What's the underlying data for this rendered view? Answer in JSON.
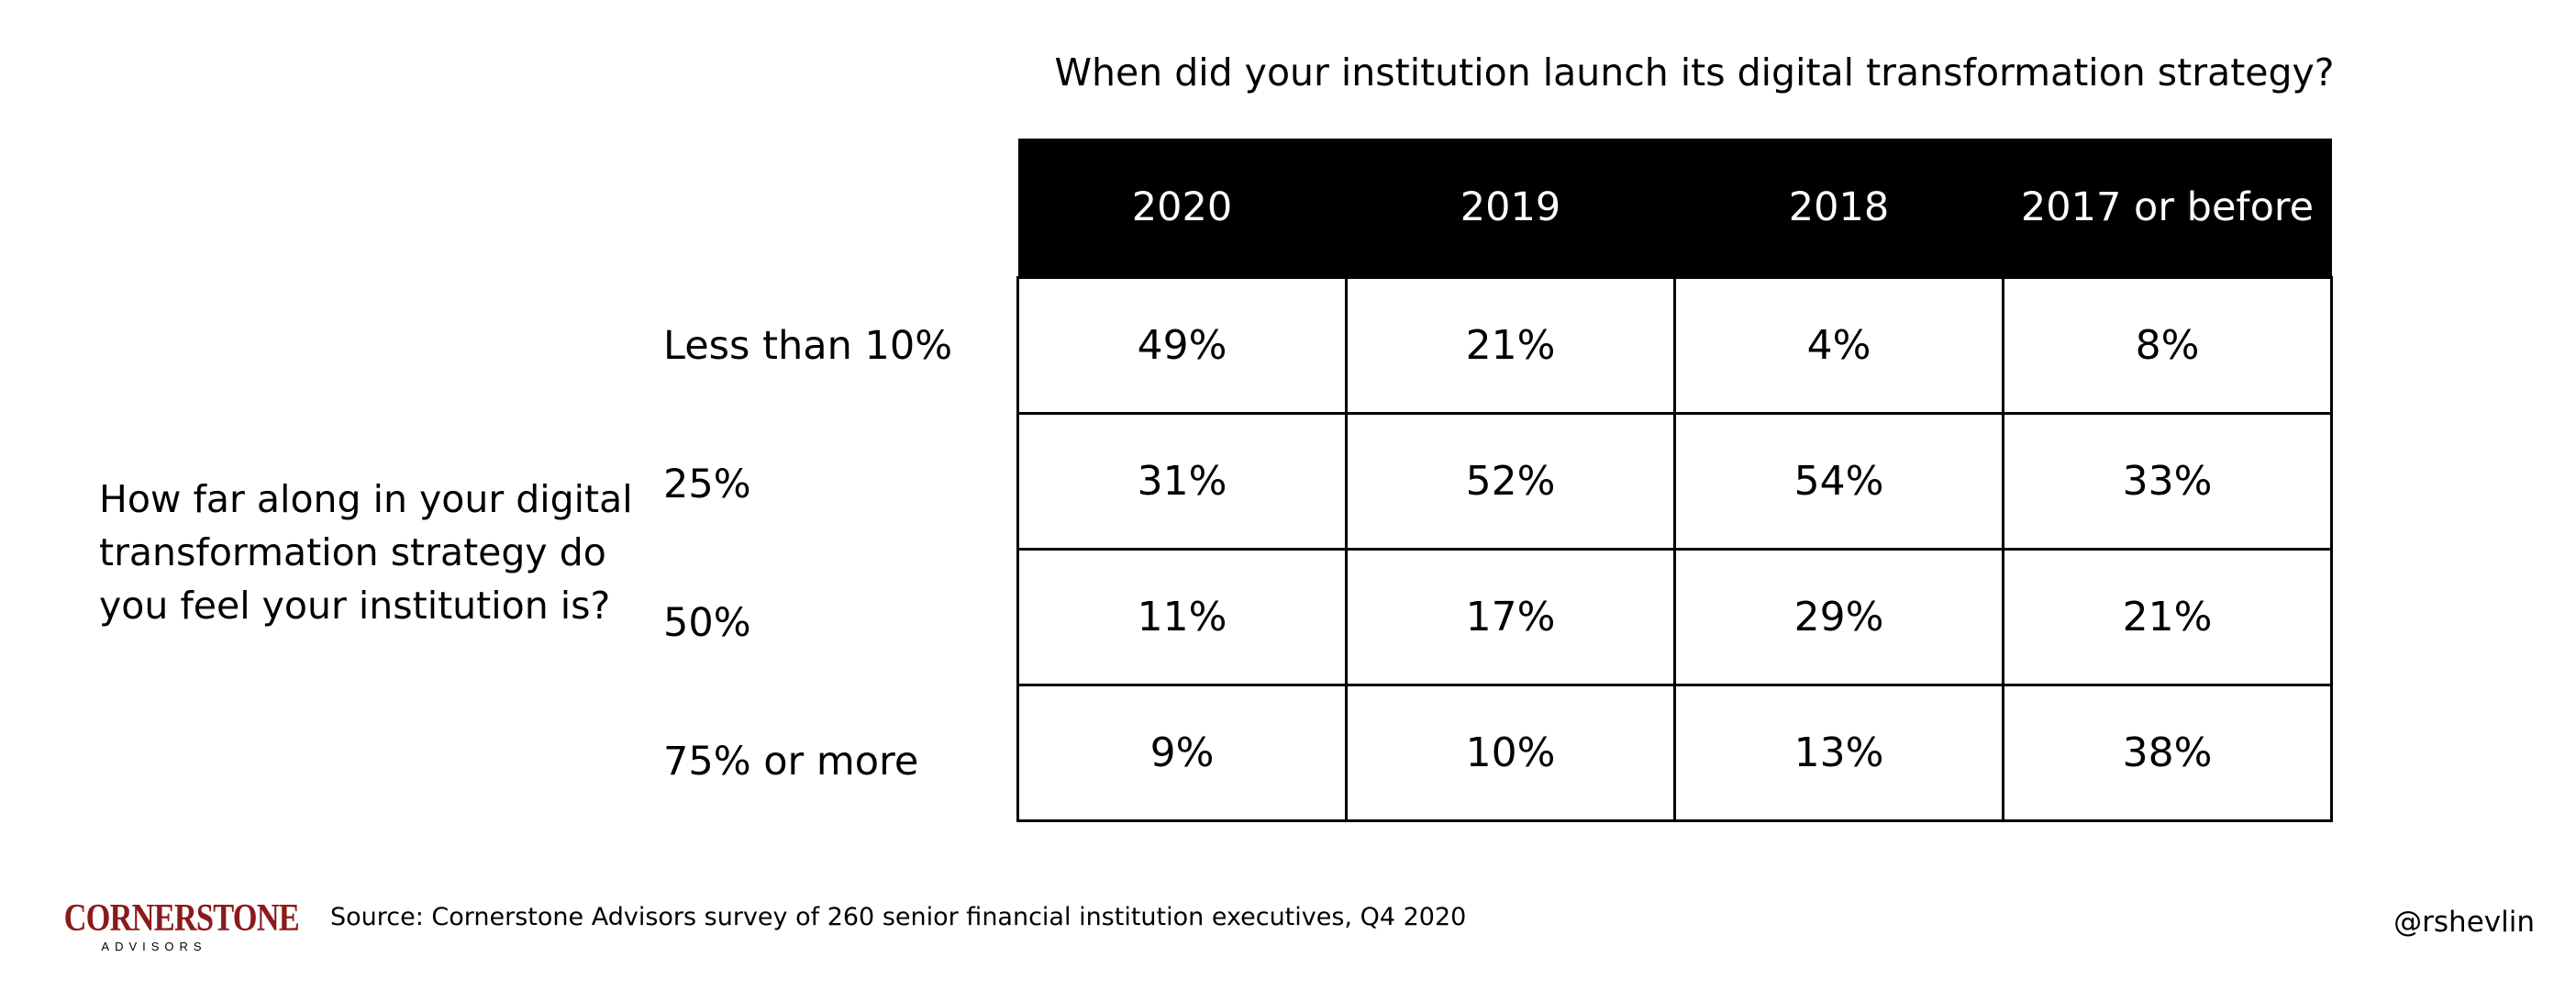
{
  "chart_data": {
    "type": "table",
    "title": "When did your institution launch its digital transformation strategy?",
    "row_header": "How far along in your digital transformation strategy do you feel your institution is?",
    "columns": [
      "2020",
      "2019",
      "2018",
      "2017 or before"
    ],
    "rows": [
      {
        "label": "Less than 10%",
        "values": [
          "49%",
          "21%",
          "4%",
          "8%"
        ]
      },
      {
        "label": "25%",
        "values": [
          "31%",
          "52%",
          "54%",
          "33%"
        ]
      },
      {
        "label": "50%",
        "values": [
          "11%",
          "17%",
          "29%",
          "21%"
        ]
      },
      {
        "label": "75% or more",
        "values": [
          "9%",
          "10%",
          "13%",
          "38%"
        ]
      }
    ]
  },
  "footer": {
    "logo_main": "CORNERSTONE",
    "logo_sub": "ADVISORS",
    "source": "Source: Cornerstone Advisors survey of 260 senior financial institution executives, Q4 2020",
    "handle": "@rshevlin"
  },
  "colors": {
    "header_bg": "#000000",
    "header_text": "#ffffff",
    "logo": "#8b1a1a"
  }
}
